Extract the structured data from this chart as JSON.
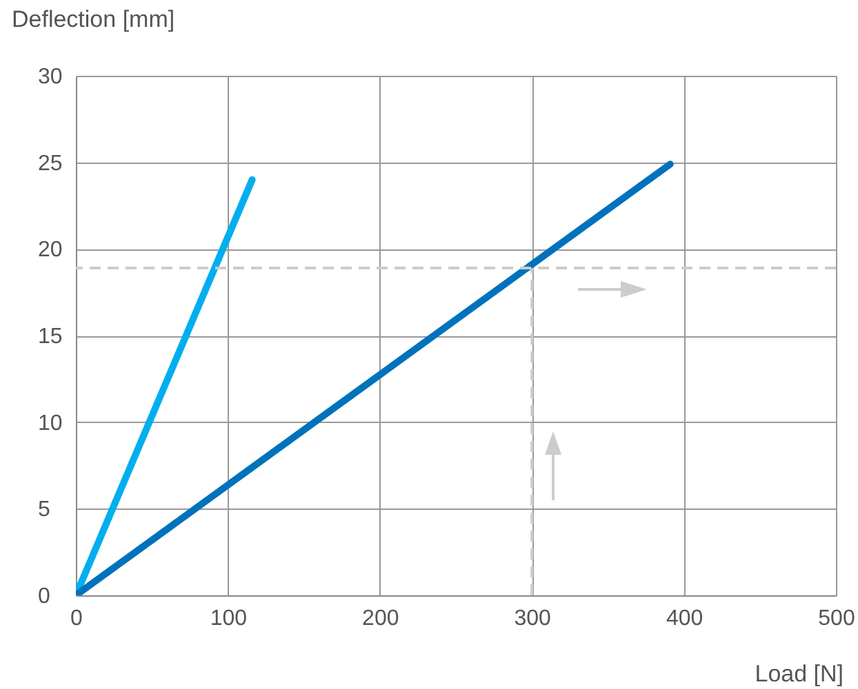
{
  "chart_data": {
    "type": "line",
    "xlabel": "Load [N]",
    "ylabel": "Deflection [mm]",
    "xlim": [
      0,
      500
    ],
    "xticks": [
      0,
      100,
      200,
      300,
      400,
      500
    ],
    "ylim": [
      0,
      30
    ],
    "yticks": [
      0,
      5,
      10,
      15,
      20,
      25,
      30
    ],
    "grid": true,
    "marker": "none",
    "line_style": "solid",
    "series": [
      {
        "color": "#00aeef",
        "x": [
          0,
          116
        ],
        "values": [
          0,
          24.0
        ]
      },
      {
        "color": "#0072bc",
        "x": [
          0,
          391
        ],
        "values": [
          0,
          24.9
        ]
      }
    ],
    "ref_lines": [
      {
        "axis": "y",
        "value": 18.9,
        "color": "#cccccc",
        "line_style": "dashed"
      },
      {
        "axis": "x",
        "value": 300,
        "color": "#cccccc",
        "line_style": "dashed"
      }
    ]
  }
}
